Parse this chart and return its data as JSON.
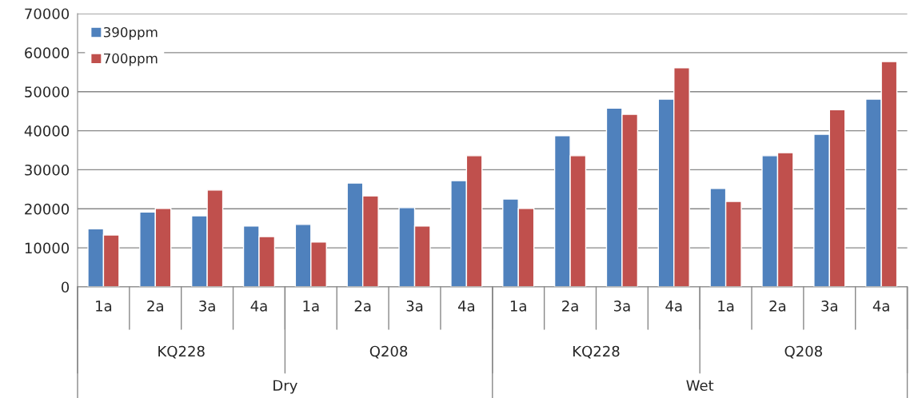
{
  "chart_data": {
    "type": "bar",
    "categories": [
      "1a",
      "2a",
      "3a",
      "4a",
      "1a",
      "2a",
      "3a",
      "4a",
      "1a",
      "2a",
      "3a",
      "4a",
      "1a",
      "2a",
      "3a",
      "4a"
    ],
    "series": [
      {
        "name": "390ppm",
        "color": "#4f81bd",
        "values": [
          14900,
          19200,
          18200,
          15600,
          16000,
          26600,
          20300,
          27200,
          22500,
          38700,
          45800,
          48100,
          25200,
          33600,
          39100,
          48100
        ]
      },
      {
        "name": "700ppm",
        "color": "#c0504d",
        "values": [
          13300,
          20100,
          24800,
          12900,
          11500,
          23300,
          15600,
          33600,
          20100,
          33600,
          44200,
          56100,
          21900,
          34400,
          45400,
          57700
        ]
      }
    ],
    "annotations": [
      "KQ228",
      "Q208",
      "KQ228",
      "Q208",
      "Dry",
      "Wet"
    ],
    "ylim": [
      0,
      70000
    ],
    "yticks": [
      0,
      10000,
      20000,
      30000,
      40000,
      50000,
      60000,
      70000
    ],
    "grid": "y",
    "legend": "top left"
  }
}
